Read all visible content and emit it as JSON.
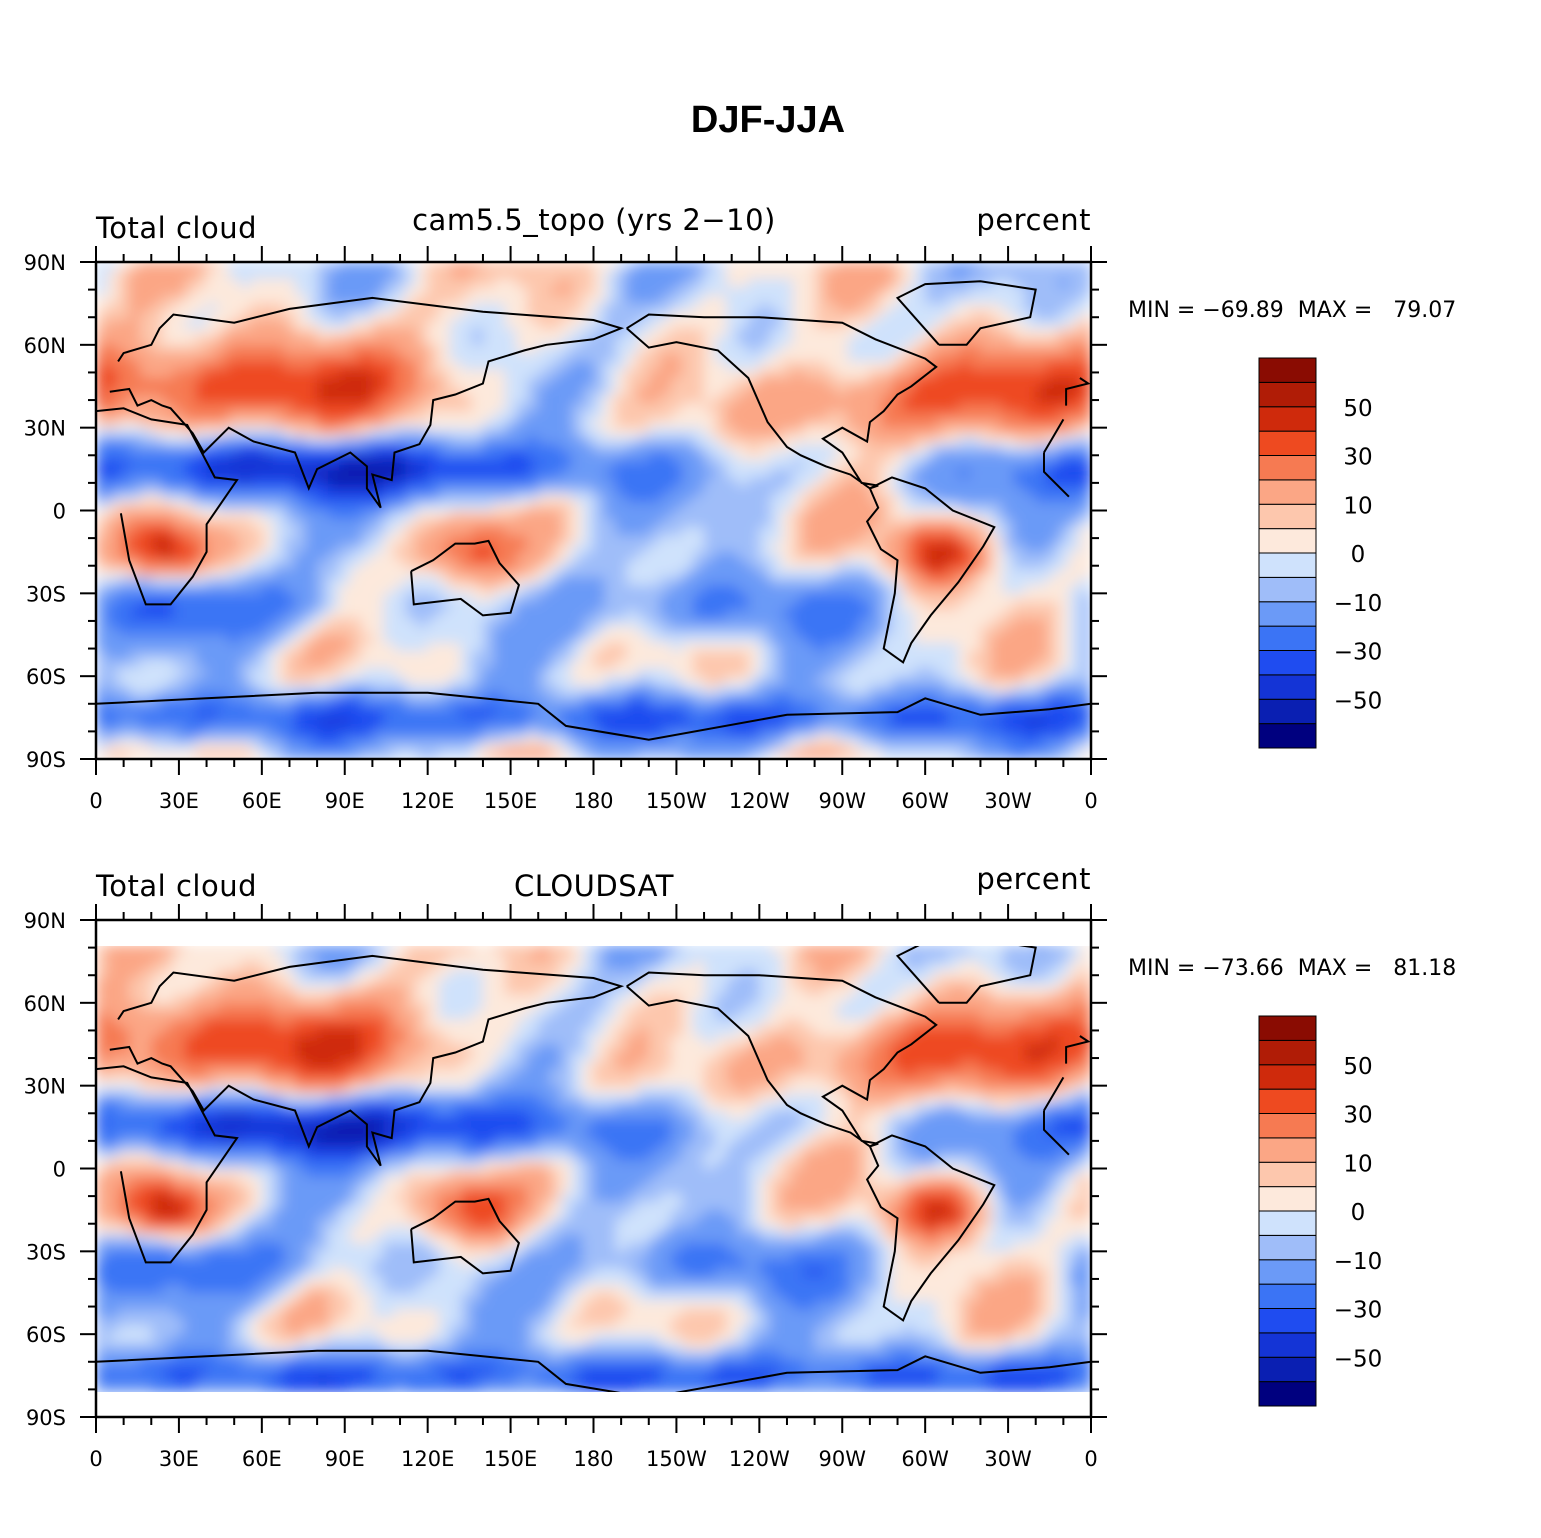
{
  "title": "DJF-JJA",
  "colorbar": {
    "colors": [
      "#00007f",
      "#0a1fb2",
      "#1434d6",
      "#1f4cf0",
      "#3b74f5",
      "#6b9af7",
      "#9fbdf9",
      "#cfe2fc",
      "#fde9dc",
      "#fdc7ad",
      "#fba685",
      "#f67a52",
      "#ee4a20",
      "#cf2a0c",
      "#b01c06",
      "#8a0c02"
    ],
    "labels": [
      {
        "text": "−50",
        "level": -50
      },
      {
        "text": "−30",
        "level": -30
      },
      {
        "text": "−10",
        "level": -10
      },
      {
        "text": "0",
        "level": 0
      },
      {
        "text": "10",
        "level": 10
      },
      {
        "text": "30",
        "level": 30
      },
      {
        "text": "50",
        "level": 50
      }
    ]
  },
  "axes": {
    "lat_ticks": [
      {
        "lat": 90,
        "label": "90N"
      },
      {
        "lat": 60,
        "label": "60N"
      },
      {
        "lat": 30,
        "label": "30N"
      },
      {
        "lat": 0,
        "label": "0"
      },
      {
        "lat": -30,
        "label": "30S"
      },
      {
        "lat": -60,
        "label": "60S"
      },
      {
        "lat": -90,
        "label": "90S"
      }
    ],
    "lon_ticks": [
      {
        "lon": 0,
        "label": "0"
      },
      {
        "lon": 30,
        "label": "30E"
      },
      {
        "lon": 60,
        "label": "60E"
      },
      {
        "lon": 90,
        "label": "90E"
      },
      {
        "lon": 120,
        "label": "120E"
      },
      {
        "lon": 150,
        "label": "150E"
      },
      {
        "lon": 180,
        "label": "180"
      },
      {
        "lon": 210,
        "label": "150W"
      },
      {
        "lon": 240,
        "label": "120W"
      },
      {
        "lon": 270,
        "label": "90W"
      },
      {
        "lon": 300,
        "label": "60W"
      },
      {
        "lon": 330,
        "label": "30W"
      },
      {
        "lon": 360,
        "label": "0"
      }
    ]
  },
  "panels": [
    {
      "left_label": "Total cloud",
      "center_label": "cam5.5_topo (yrs 2−10)",
      "right_label": "percent",
      "stats": "MIN = −69.89  MAX =   79.07",
      "coverage_lat": [
        -90,
        90
      ]
    },
    {
      "left_label": "Total cloud",
      "center_label": "CLOUDSAT",
      "right_label": "percent",
      "stats": "MIN = −73.66  MAX =   81.18",
      "coverage_lat": [
        -81,
        81
      ]
    }
  ]
}
